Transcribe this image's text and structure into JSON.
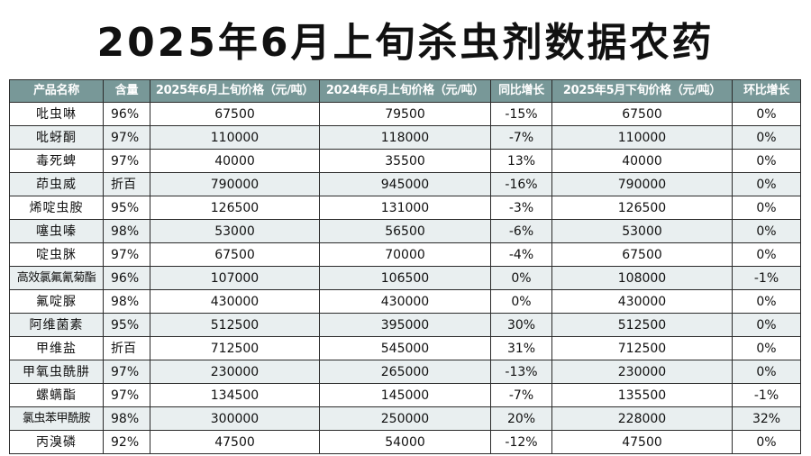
{
  "title": "2025年6月上旬杀虫剂数据农药",
  "table": {
    "headers": [
      "产品名称",
      "含量",
      "2025年6月上旬价格（元/吨）",
      "2024年6月上旬价格（元/吨）",
      "同比增长",
      "2025年5月下旬价格（元/吨）",
      "环比增长"
    ],
    "rows": [
      [
        "吡虫啉",
        "96%",
        "67500",
        "79500",
        "-15%",
        "67500",
        "0%"
      ],
      [
        "吡蚜酮",
        "97%",
        "110000",
        "118000",
        "-7%",
        "110000",
        "0%"
      ],
      [
        "毒死蜱",
        "97%",
        "40000",
        "35500",
        "13%",
        "40000",
        "0%"
      ],
      [
        "茚虫威",
        "折百",
        "790000",
        "945000",
        "-16%",
        "790000",
        "0%"
      ],
      [
        "烯啶虫胺",
        "95%",
        "126500",
        "131000",
        "-3%",
        "126500",
        "0%"
      ],
      [
        "噻虫嗪",
        "98%",
        "53000",
        "56500",
        "-6%",
        "53000",
        "0%"
      ],
      [
        "啶虫脒",
        "97%",
        "67500",
        "70000",
        "-4%",
        "67500",
        "0%"
      ],
      [
        "高效氯氟氰菊酯",
        "96%",
        "107000",
        "106500",
        "0%",
        "108000",
        "-1%"
      ],
      [
        "氟啶脲",
        "98%",
        "430000",
        "430000",
        "0%",
        "430000",
        "0%"
      ],
      [
        "阿维菌素",
        "95%",
        "512500",
        "395000",
        "30%",
        "512500",
        "0%"
      ],
      [
        "甲维盐",
        "折百",
        "712500",
        "545000",
        "31%",
        "712500",
        "0%"
      ],
      [
        "甲氧虫酰肼",
        "97%",
        "230000",
        "265000",
        "-13%",
        "230000",
        "0%"
      ],
      [
        "螺螨酯",
        "97%",
        "134500",
        "145000",
        "-7%",
        "135500",
        "-1%"
      ],
      [
        "氯虫苯甲酰胺",
        "98%",
        "300000",
        "250000",
        "20%",
        "228000",
        "32%"
      ],
      [
        "丙溴磷",
        "92%",
        "47500",
        "54000",
        "-12%",
        "47500",
        "0%"
      ]
    ]
  }
}
